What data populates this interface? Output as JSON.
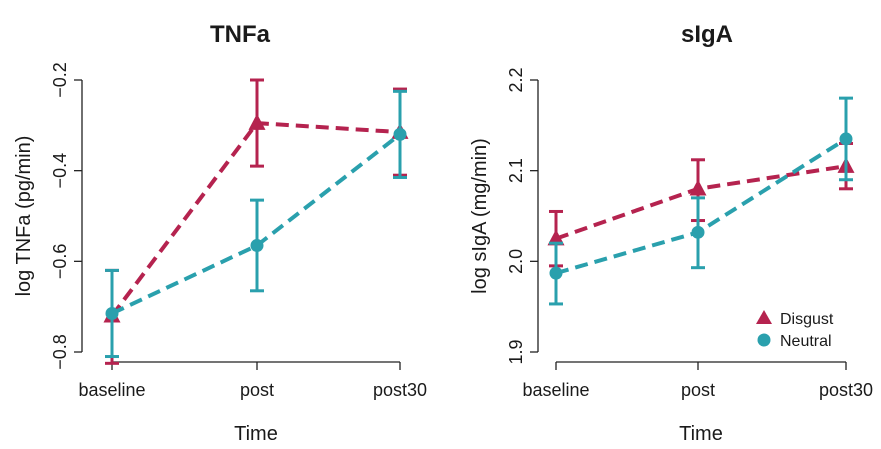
{
  "colors": {
    "Disgust": "#b5234f",
    "Neutral": "#2aa0ad",
    "axis": "#222222"
  },
  "chart_data": [
    {
      "type": "line",
      "title": "TNFa",
      "xlabel": "Time",
      "ylabel": "log TNFa (pg/min)",
      "categories": [
        "baseline",
        "post",
        "post30"
      ],
      "ylim": [
        -0.8,
        -0.2
      ],
      "yticks": [
        -0.8,
        -0.6,
        -0.4,
        -0.2
      ],
      "ytick_labels": [
        "−0.8",
        "−0.6",
        "−0.4",
        "−0.2"
      ],
      "legend": null,
      "series": [
        {
          "name": "Disgust",
          "marker": "triangle",
          "values": [
            -0.72,
            -0.295,
            -0.315
          ],
          "lower": [
            -0.825,
            -0.39,
            -0.41
          ],
          "upper": [
            -0.62,
            -0.2,
            -0.22
          ]
        },
        {
          "name": "Neutral",
          "marker": "circle",
          "values": [
            -0.715,
            -0.565,
            -0.32
          ],
          "lower": [
            -0.81,
            -0.665,
            -0.415
          ],
          "upper": [
            -0.62,
            -0.465,
            -0.225
          ]
        }
      ]
    },
    {
      "type": "line",
      "title": "sIgA",
      "xlabel": "Time",
      "ylabel": "log sIgA (mg/min)",
      "categories": [
        "baseline",
        "post",
        "post30"
      ],
      "ylim": [
        1.9,
        2.2
      ],
      "yticks": [
        1.9,
        2.0,
        2.1,
        2.2
      ],
      "ytick_labels": [
        "1.9",
        "2.0",
        "2.1",
        "2.2"
      ],
      "legend": "bottom-right",
      "series": [
        {
          "name": "Disgust",
          "marker": "triangle",
          "values": [
            2.025,
            2.08,
            2.105
          ],
          "lower": [
            1.995,
            2.045,
            2.08
          ],
          "upper": [
            2.055,
            2.112,
            2.13
          ]
        },
        {
          "name": "Neutral",
          "marker": "circle",
          "values": [
            1.987,
            2.032,
            2.135
          ],
          "lower": [
            1.953,
            1.993,
            2.09
          ],
          "upper": [
            2.02,
            2.07,
            2.18
          ]
        }
      ]
    }
  ]
}
